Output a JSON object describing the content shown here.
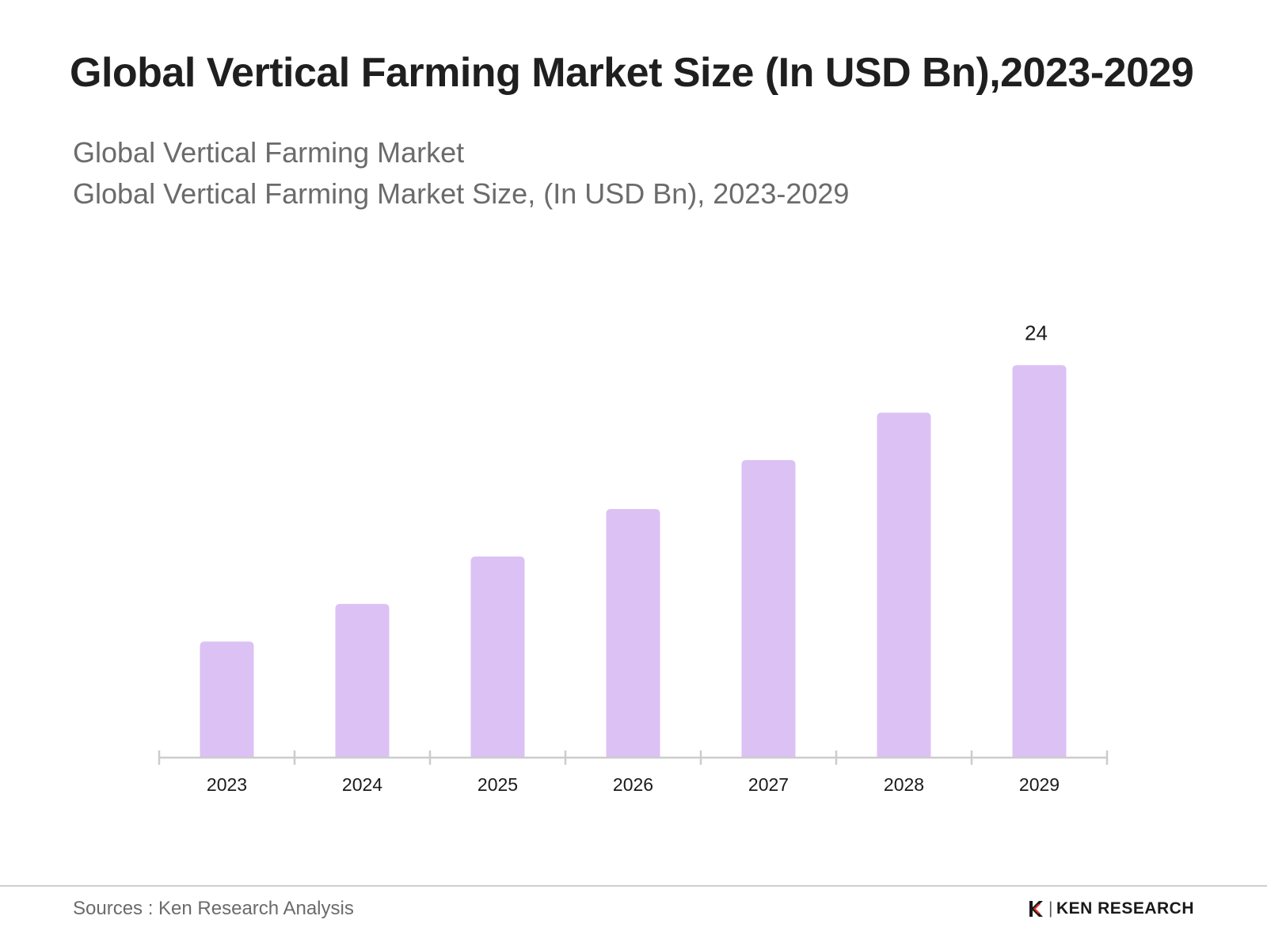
{
  "title": "Global Vertical Farming Market Size (In USD Bn),2023-2029",
  "subtitle_1": "Global Vertical Farming Market",
  "subtitle_2": "Global Vertical Farming Market Size, (In USD Bn), 2023-2029",
  "source": "Sources : Ken Research Analysis",
  "brand": {
    "separator": "|",
    "name": "KEN RESEARCH"
  },
  "chart_data": {
    "type": "bar",
    "categories": [
      "2023",
      "2024",
      "2025",
      "2026",
      "2027",
      "2028",
      "2029"
    ],
    "values": [
      7.1,
      9.4,
      12.3,
      15.2,
      18.2,
      21.1,
      24
    ],
    "data_labels": [
      "",
      "",
      "",
      "",
      "",
      "",
      "24"
    ],
    "ylim": [
      0,
      26
    ],
    "grid": false,
    "bar_color": "#dcc1f5",
    "axis_color": "#cccccc"
  }
}
